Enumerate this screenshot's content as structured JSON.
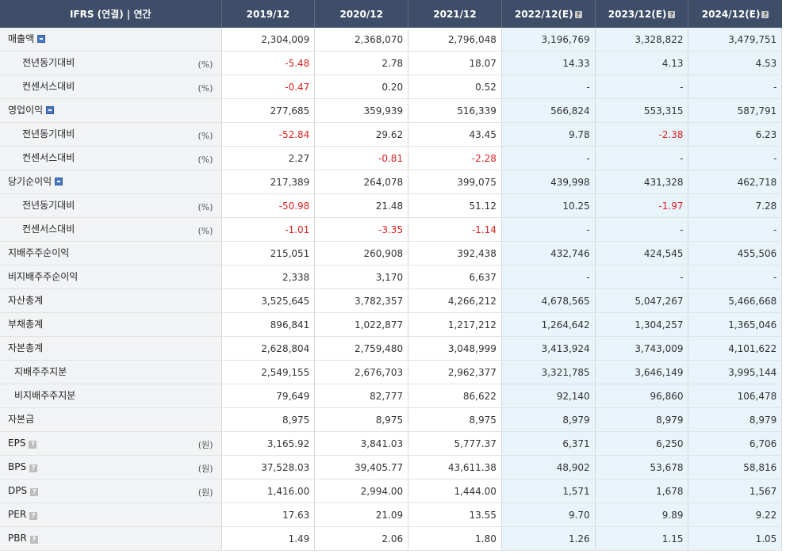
{
  "header": {
    "title": "IFRS (연결) | 연간",
    "columns": [
      "2019/12",
      "2020/12",
      "2021/12",
      "2022/12(E)",
      "2023/12(E)",
      "2024/12(E)"
    ],
    "estimate_help": "?"
  },
  "rows": [
    {
      "label": "매출액",
      "indent": 0,
      "unit": "",
      "icon": "expand",
      "values": [
        "2,304,009",
        "2,368,070",
        "2,796,048",
        "3,196,769",
        "3,328,822",
        "3,479,751"
      ]
    },
    {
      "label": "전년동기대비",
      "indent": 1,
      "unit": "(%)",
      "icon": "",
      "values": [
        "-5.48",
        "2.78",
        "18.07",
        "14.33",
        "4.13",
        "4.53"
      ]
    },
    {
      "label": "컨센서스대비",
      "indent": 1,
      "unit": "(%)",
      "icon": "",
      "values": [
        "-0.47",
        "0.20",
        "0.52",
        "-",
        "-",
        "-"
      ]
    },
    {
      "label": "영업이익",
      "indent": 0,
      "unit": "",
      "icon": "expand",
      "values": [
        "277,685",
        "359,939",
        "516,339",
        "566,824",
        "553,315",
        "587,791"
      ]
    },
    {
      "label": "전년동기대비",
      "indent": 1,
      "unit": "(%)",
      "icon": "",
      "values": [
        "-52.84",
        "29.62",
        "43.45",
        "9.78",
        "-2.38",
        "6.23"
      ]
    },
    {
      "label": "컨센서스대비",
      "indent": 1,
      "unit": "(%)",
      "icon": "",
      "values": [
        "2.27",
        "-0.81",
        "-2.28",
        "-",
        "-",
        "-"
      ]
    },
    {
      "label": "당기순이익",
      "indent": 0,
      "unit": "",
      "icon": "expand",
      "values": [
        "217,389",
        "264,078",
        "399,075",
        "439,998",
        "431,328",
        "462,718"
      ]
    },
    {
      "label": "전년동기대비",
      "indent": 1,
      "unit": "(%)",
      "icon": "",
      "values": [
        "-50.98",
        "21.48",
        "51.12",
        "10.25",
        "-1.97",
        "7.28"
      ]
    },
    {
      "label": "컨센서스대비",
      "indent": 1,
      "unit": "(%)",
      "icon": "",
      "values": [
        "-1.01",
        "-3.35",
        "-1.14",
        "-",
        "-",
        "-"
      ]
    },
    {
      "label": "지배주주순이익",
      "indent": 0,
      "unit": "",
      "icon": "",
      "values": [
        "215,051",
        "260,908",
        "392,438",
        "432,746",
        "424,545",
        "455,506"
      ]
    },
    {
      "label": "비지배주주순이익",
      "indent": 0,
      "unit": "",
      "icon": "",
      "values": [
        "2,338",
        "3,170",
        "6,637",
        "-",
        "-",
        "-"
      ]
    },
    {
      "label": "자산총계",
      "indent": 0,
      "unit": "",
      "icon": "",
      "values": [
        "3,525,645",
        "3,782,357",
        "4,266,212",
        "4,678,565",
        "5,047,267",
        "5,466,668"
      ]
    },
    {
      "label": "부채총계",
      "indent": 0,
      "unit": "",
      "icon": "",
      "values": [
        "896,841",
        "1,022,877",
        "1,217,212",
        "1,264,642",
        "1,304,257",
        "1,365,046"
      ]
    },
    {
      "label": "자본총계",
      "indent": 0,
      "unit": "",
      "icon": "",
      "values": [
        "2,628,804",
        "2,759,480",
        "3,048,999",
        "3,413,924",
        "3,743,009",
        "4,101,622"
      ]
    },
    {
      "label": "지배주주지분",
      "indent": 2,
      "unit": "",
      "icon": "",
      "values": [
        "2,549,155",
        "2,676,703",
        "2,962,377",
        "3,321,785",
        "3,646,149",
        "3,995,144"
      ]
    },
    {
      "label": "비지배주주지분",
      "indent": 2,
      "unit": "",
      "icon": "",
      "values": [
        "79,649",
        "82,777",
        "86,622",
        "92,140",
        "96,860",
        "106,478"
      ]
    },
    {
      "label": "자본금",
      "indent": 0,
      "unit": "",
      "icon": "",
      "values": [
        "8,975",
        "8,975",
        "8,975",
        "8,979",
        "8,979",
        "8,979"
      ]
    },
    {
      "label": "EPS",
      "indent": 0,
      "unit": "(원)",
      "icon": "info",
      "values": [
        "3,165.92",
        "3,841.03",
        "5,777.37",
        "6,371",
        "6,250",
        "6,706"
      ]
    },
    {
      "label": "BPS",
      "indent": 0,
      "unit": "(원)",
      "icon": "info",
      "values": [
        "37,528.03",
        "39,405.77",
        "43,611.38",
        "48,902",
        "53,678",
        "58,816"
      ]
    },
    {
      "label": "DPS",
      "indent": 0,
      "unit": "(원)",
      "icon": "info",
      "values": [
        "1,416.00",
        "2,994.00",
        "1,444.00",
        "1,571",
        "1,678",
        "1,567"
      ]
    },
    {
      "label": "PER",
      "indent": 0,
      "unit": "",
      "icon": "info",
      "values": [
        "17.63",
        "21.09",
        "13.55",
        "9.70",
        "9.89",
        "9.22"
      ]
    },
    {
      "label": "PBR",
      "indent": 0,
      "unit": "",
      "icon": "info",
      "values": [
        "1.49",
        "2.06",
        "1.80",
        "1.26",
        "1.15",
        "1.05"
      ]
    }
  ],
  "colors": {
    "header_bg": "#3e4e68",
    "label_bg": "#f1f3f5",
    "estimate_bg": "#e8f3fa",
    "negative": "#e02020",
    "expand_icon": "#4a79c4"
  }
}
